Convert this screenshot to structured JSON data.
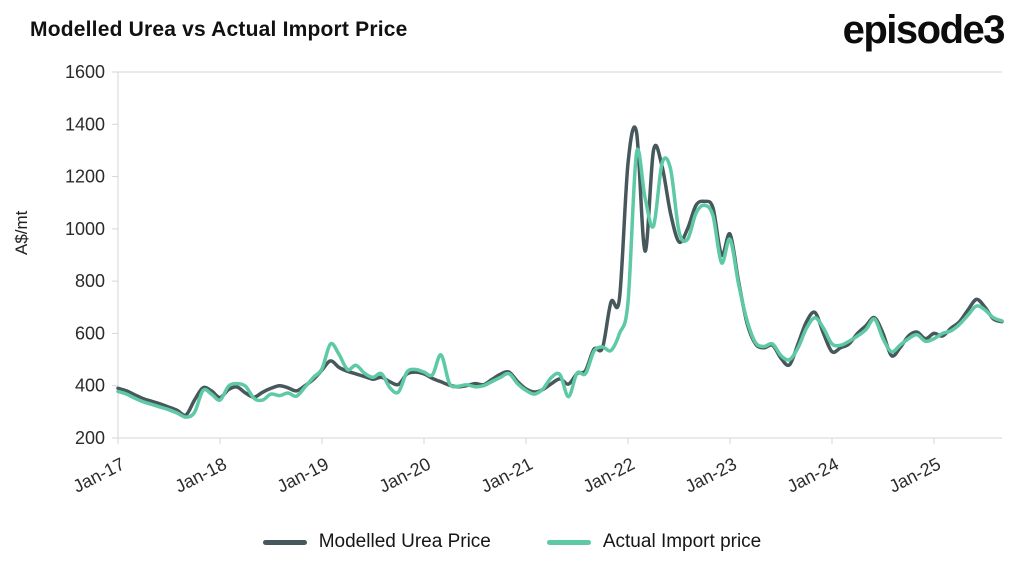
{
  "header": {
    "title": "Modelled Urea vs Actual Import Price",
    "logo_text": "episode3"
  },
  "chart_data": {
    "type": "line",
    "title": "Modelled Urea vs Actual Import Price",
    "xlabel": "",
    "ylabel": "A$/mt",
    "ylim": [
      200,
      1600
    ],
    "yticks": [
      200,
      400,
      600,
      800,
      1000,
      1200,
      1400,
      1600
    ],
    "grid": false,
    "legend_position": "bottom",
    "xtick_labels": [
      "Jan-17",
      "Jan-18",
      "Jan-19",
      "Jan-20",
      "Jan-21",
      "Jan-22",
      "Jan-23",
      "Jan-24",
      "Jan-25"
    ],
    "xtick_indices": [
      0,
      12,
      24,
      36,
      48,
      60,
      72,
      84,
      96
    ],
    "x": [
      "Jan-17",
      "Feb-17",
      "Mar-17",
      "Apr-17",
      "May-17",
      "Jun-17",
      "Jul-17",
      "Aug-17",
      "Sep-17",
      "Oct-17",
      "Nov-17",
      "Dec-17",
      "Jan-18",
      "Feb-18",
      "Mar-18",
      "Apr-18",
      "May-18",
      "Jun-18",
      "Jul-18",
      "Aug-18",
      "Sep-18",
      "Oct-18",
      "Nov-18",
      "Dec-18",
      "Jan-19",
      "Feb-19",
      "Mar-19",
      "Apr-19",
      "May-19",
      "Jun-19",
      "Jul-19",
      "Aug-19",
      "Sep-19",
      "Oct-19",
      "Nov-19",
      "Dec-19",
      "Jan-20",
      "Feb-20",
      "Mar-20",
      "Apr-20",
      "May-20",
      "Jun-20",
      "Jul-20",
      "Aug-20",
      "Sep-20",
      "Oct-20",
      "Nov-20",
      "Dec-20",
      "Jan-21",
      "Feb-21",
      "Mar-21",
      "Apr-21",
      "May-21",
      "Jun-21",
      "Jul-21",
      "Aug-21",
      "Sep-21",
      "Oct-21",
      "Nov-21",
      "Dec-21",
      "Jan-22",
      "Feb-22",
      "Mar-22",
      "Apr-22",
      "May-22",
      "Jun-22",
      "Jul-22",
      "Aug-22",
      "Sep-22",
      "Oct-22",
      "Nov-22",
      "Dec-22",
      "Jan-23",
      "Feb-23",
      "Mar-23",
      "Apr-23",
      "May-23",
      "Jun-23",
      "Jul-23",
      "Aug-23",
      "Sep-23",
      "Oct-23",
      "Nov-23",
      "Dec-23",
      "Jan-24",
      "Feb-24",
      "Mar-24",
      "Apr-24",
      "May-24",
      "Jun-24",
      "Jul-24",
      "Aug-24",
      "Sep-24",
      "Oct-24",
      "Nov-24",
      "Dec-24",
      "Jan-25",
      "Feb-25",
      "Mar-25",
      "Apr-25",
      "May-25",
      "Jun-25",
      "Jul-25",
      "Aug-25",
      "Sep-25"
    ],
    "series": [
      {
        "name": "Modelled Urea Price",
        "color": "#47585c",
        "values": [
          390,
          380,
          365,
          350,
          340,
          330,
          318,
          305,
          288,
          345,
          392,
          380,
          355,
          385,
          395,
          372,
          356,
          375,
          390,
          400,
          392,
          380,
          400,
          425,
          460,
          495,
          470,
          455,
          445,
          435,
          425,
          432,
          415,
          405,
          445,
          452,
          445,
          428,
          415,
          402,
          396,
          400,
          408,
          404,
          424,
          444,
          452,
          416,
          388,
          376,
          386,
          408,
          426,
          406,
          446,
          458,
          540,
          545,
          720,
          735,
          1250,
          1370,
          915,
          1300,
          1240,
          1060,
          950,
          1000,
          1090,
          1105,
          1080,
          900,
          980,
          800,
          640,
          560,
          545,
          555,
          505,
          480,
          560,
          645,
          680,
          600,
          530,
          545,
          560,
          600,
          630,
          660,
          600,
          515,
          545,
          590,
          605,
          580,
          600,
          590,
          620,
          645,
          690,
          730,
          700,
          655,
          645
        ]
      },
      {
        "name": "Actual Import price",
        "color": "#5ec9a5",
        "values": [
          378,
          368,
          352,
          338,
          328,
          318,
          308,
          295,
          280,
          298,
          382,
          368,
          345,
          398,
          408,
          398,
          352,
          345,
          368,
          362,
          372,
          360,
          395,
          432,
          465,
          560,
          520,
          462,
          478,
          448,
          432,
          446,
          392,
          376,
          452,
          462,
          452,
          442,
          518,
          408,
          398,
          404,
          396,
          400,
          416,
          432,
          446,
          408,
          382,
          368,
          388,
          432,
          442,
          358,
          448,
          446,
          532,
          548,
          535,
          600,
          720,
          1290,
          1120,
          1010,
          1250,
          1230,
          990,
          960,
          1060,
          1090,
          1050,
          870,
          960,
          790,
          650,
          565,
          550,
          560,
          515,
          500,
          545,
          620,
          660,
          620,
          560,
          555,
          570,
          590,
          615,
          655,
          580,
          530,
          555,
          580,
          595,
          570,
          580,
          600,
          610,
          635,
          670,
          705,
          690,
          660,
          648
        ]
      }
    ]
  },
  "style": {
    "axis_line_color": "#d6d6d6",
    "tick_text_color": "#2b2b2b"
  }
}
